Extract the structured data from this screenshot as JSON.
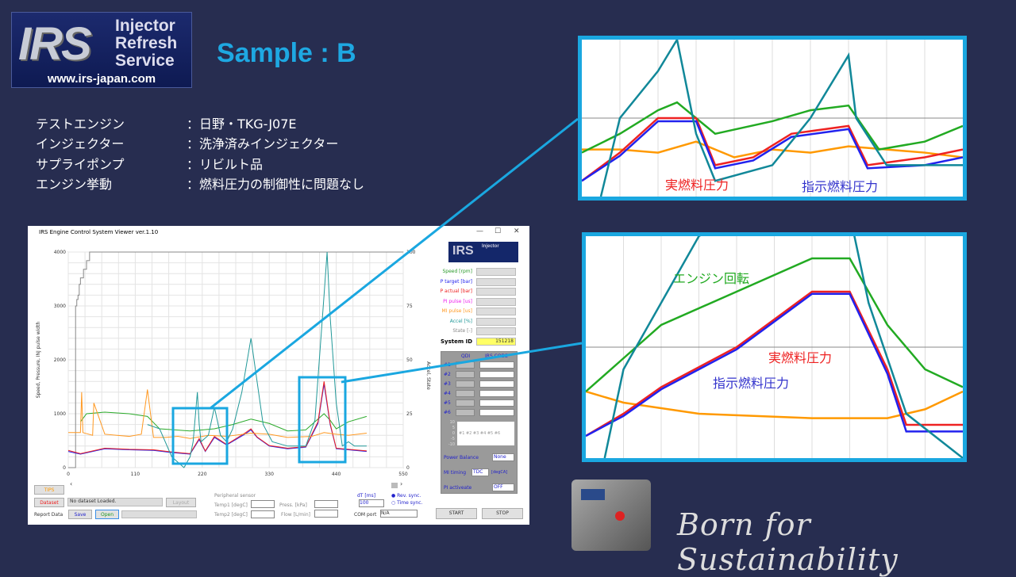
{
  "logo": {
    "brand": "IRS",
    "line1": "Injector",
    "line2": "Refresh",
    "line3": "Service",
    "url": "www.irs-japan.com"
  },
  "slide_title": "Sample : B",
  "specs": [
    {
      "label": "テストエンジン",
      "value": "：日野・TKG-J07E"
    },
    {
      "label": "インジェクター",
      "value": "：洗浄済みインジェクター"
    },
    {
      "label": "サプライポンプ",
      "value": "：リビルト品"
    },
    {
      "label": "エンジン挙動",
      "value": "：燃料圧力の制御性に問題なし"
    }
  ],
  "app": {
    "title": "IRS Engine Control System Viewer ver.1.10",
    "readouts": [
      {
        "label": "Speed [rpm]",
        "color": "#2a9a2a"
      },
      {
        "label": "P target [bar]",
        "color": "#2222ee"
      },
      {
        "label": "P actual [bar]",
        "color": "#ee2222"
      },
      {
        "label": "PI pulse [us]",
        "color": "#ee22ee"
      },
      {
        "label": "MI pulse [us]",
        "color": "#ff9922"
      },
      {
        "label": "Accel [%]",
        "color": "#229999"
      },
      {
        "label": "State [-]",
        "color": "#888888"
      }
    ],
    "system_id_label": "System ID",
    "system_id": "151218",
    "qdi_header": "QDI",
    "irs_code_header": "IRS CODE",
    "cyl": [
      "#1",
      "#2",
      "#3",
      "#4",
      "#5",
      "#6"
    ],
    "balance_ticks": [
      "10",
      "5",
      "0",
      "-5",
      "-10"
    ],
    "balance_labels": "#1 #2 #3 #4 #5 #6",
    "power_balance_label": "Power Balance",
    "power_balance": "None",
    "mi_timing_label": "MI timing",
    "mi_timing": "TDC",
    "mi_timing_unit": "[degCA]",
    "pi_label": "PI activeate",
    "pi": "OFF",
    "start": "START",
    "stop": "STOP",
    "tips": "TIPS",
    "dataset": "Dataset",
    "dataset_status": "No dataset Loaded.",
    "layout": "Layout",
    "report_label": "Report Data",
    "save": "Save",
    "open": "Open",
    "periph_title": "Peripheral sensor",
    "temp1": "Temp1 [degC]",
    "temp2": "Temp2 [degC]",
    "press": "Press. [kPa]",
    "flow": "Flow [L/min]",
    "dt_label": "dT [ms]",
    "dt": "100",
    "rev_sync": "Rev. sync.",
    "time_sync": "Time sync.",
    "com_label": "COM port",
    "com": "N/A"
  },
  "chart_data": {
    "type": "line",
    "ylabel": "Speed, Pressure, INJ pulse width",
    "y2label": "Accel, State",
    "xlim": [
      0,
      550
    ],
    "ylim": [
      0,
      4000
    ],
    "y2lim": [
      0,
      100
    ],
    "xticks": [
      "0",
      "110",
      "220",
      "330",
      "440",
      "550"
    ],
    "yticks": [
      "0",
      "1000",
      "2000",
      "3000",
      "4000"
    ],
    "y2ticks": [
      "0",
      "25",
      "50",
      "75",
      "100"
    ],
    "grid": true,
    "series": [
      {
        "key": "state",
        "color": "#888888",
        "axis": "y2",
        "x": [
          0,
          10,
          12,
          14,
          16,
          18,
          20,
          25,
          30,
          35,
          550
        ],
        "y": [
          0,
          0,
          75,
          78,
          80,
          85,
          88,
          92,
          96,
          100,
          100
        ]
      },
      {
        "key": "speed",
        "color": "#2aaa2a",
        "axis": "y",
        "x": [
          20,
          30,
          60,
          100,
          130,
          150,
          200,
          240,
          270,
          300,
          330,
          360,
          390,
          410,
          420,
          430,
          440,
          460,
          490
        ],
        "y": [
          850,
          1000,
          1030,
          1000,
          950,
          720,
          680,
          720,
          800,
          900,
          820,
          680,
          700,
          900,
          1000,
          880,
          720,
          850,
          950
        ]
      },
      {
        "key": "p_target",
        "color": "#2222ee",
        "axis": "y",
        "x": [
          0,
          20,
          60,
          100,
          140,
          170,
          200,
          215,
          225,
          240,
          260,
          290,
          300,
          310,
          330,
          360,
          390,
          410,
          420,
          430,
          440,
          460,
          490
        ],
        "y": [
          300,
          250,
          350,
          330,
          320,
          280,
          250,
          520,
          300,
          560,
          420,
          620,
          700,
          560,
          400,
          350,
          380,
          820,
          1550,
          800,
          350,
          330,
          300
        ]
      },
      {
        "key": "p_actual",
        "color": "#ee2222",
        "axis": "y",
        "x": [
          0,
          20,
          60,
          100,
          140,
          170,
          200,
          215,
          225,
          240,
          260,
          290,
          300,
          310,
          330,
          360,
          390,
          410,
          420,
          430,
          440,
          460,
          490
        ],
        "y": [
          320,
          260,
          360,
          340,
          330,
          290,
          260,
          540,
          310,
          580,
          430,
          640,
          720,
          570,
          410,
          360,
          390,
          850,
          1600,
          820,
          360,
          340,
          310
        ]
      },
      {
        "key": "mi_pulse",
        "color": "#ff9922",
        "axis": "y",
        "x": [
          0,
          20,
          22,
          24,
          40,
          42,
          60,
          80,
          100,
          120,
          130,
          140,
          160,
          180,
          200,
          230,
          260,
          300,
          330,
          360,
          400,
          420,
          440,
          460,
          490
        ],
        "y": [
          650,
          650,
          1400,
          650,
          600,
          1200,
          620,
          600,
          580,
          620,
          1450,
          560,
          560,
          580,
          540,
          600,
          580,
          640,
          620,
          560,
          580,
          650,
          620,
          600,
          640
        ]
      },
      {
        "key": "accel",
        "color": "#229999",
        "axis": "y2",
        "x": [
          130,
          150,
          170,
          190,
          200,
          205,
          212,
          215,
          218,
          230,
          240,
          250,
          260,
          270,
          285,
          300,
          310,
          320,
          335,
          360,
          390,
          405,
          420,
          425,
          430,
          440,
          450,
          460,
          470,
          490
        ],
        "y": [
          20,
          18,
          5,
          0,
          5,
          12,
          35,
          20,
          12,
          15,
          28,
          15,
          12,
          18,
          35,
          60,
          40,
          20,
          12,
          10,
          10,
          22,
          80,
          100,
          70,
          30,
          10,
          12,
          10,
          10
        ]
      }
    ]
  },
  "zoom_top": {
    "labels": {
      "actual": "実燃料圧力",
      "target": "指示燃料圧力"
    }
  },
  "zoom_bottom": {
    "labels": {
      "speed": "エンジン回転",
      "actual": "実燃料圧力",
      "target": "指示燃料圧力"
    }
  },
  "tagline": "Born for Sustainability",
  "colors": {
    "accent": "#1aa7e0",
    "background": "#272d50"
  }
}
